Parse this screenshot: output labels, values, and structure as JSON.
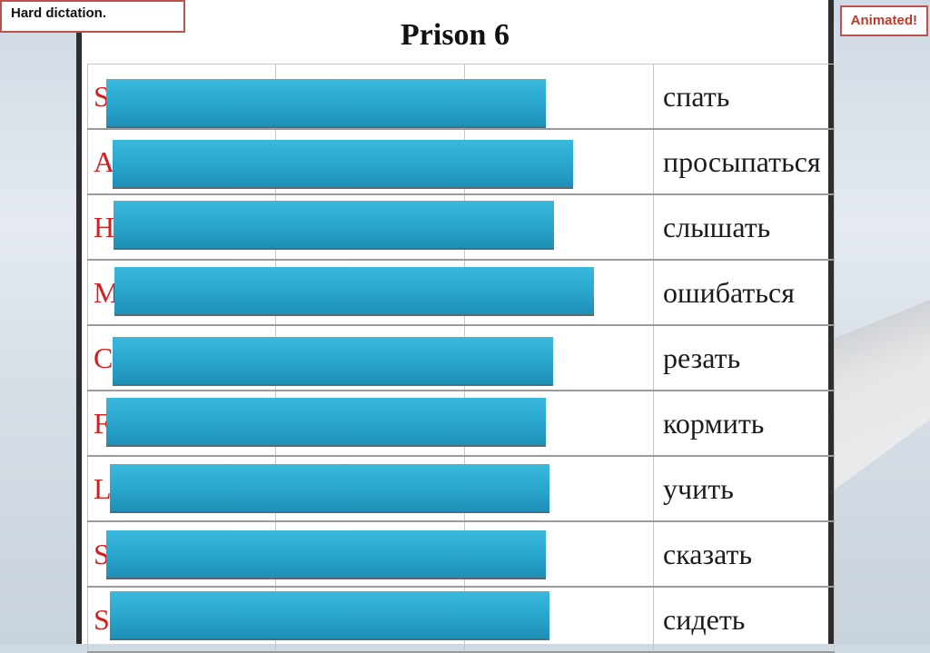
{
  "labels": {
    "hard_dictation": "Hard dictation.",
    "animated": "Animated!"
  },
  "slide": {
    "title": "Prison 6",
    "rows": [
      {
        "letter": "S",
        "russian": "спать"
      },
      {
        "letter": "A",
        "russian": "просыпаться"
      },
      {
        "letter": "H",
        "russian": "слышать"
      },
      {
        "letter": "M",
        "russian": "ошибаться"
      },
      {
        "letter": "C",
        "russian": "резать"
      },
      {
        "letter": "F",
        "russian": "кормить"
      },
      {
        "letter": "L",
        "russian": "учить"
      },
      {
        "letter": "S",
        "russian": "сказать"
      },
      {
        "letter": "S",
        "russian": "сидеть"
      }
    ]
  },
  "colors": {
    "cover": "#2aa7cf",
    "letter": "#d21f1f",
    "label_border": "#c0504d"
  }
}
